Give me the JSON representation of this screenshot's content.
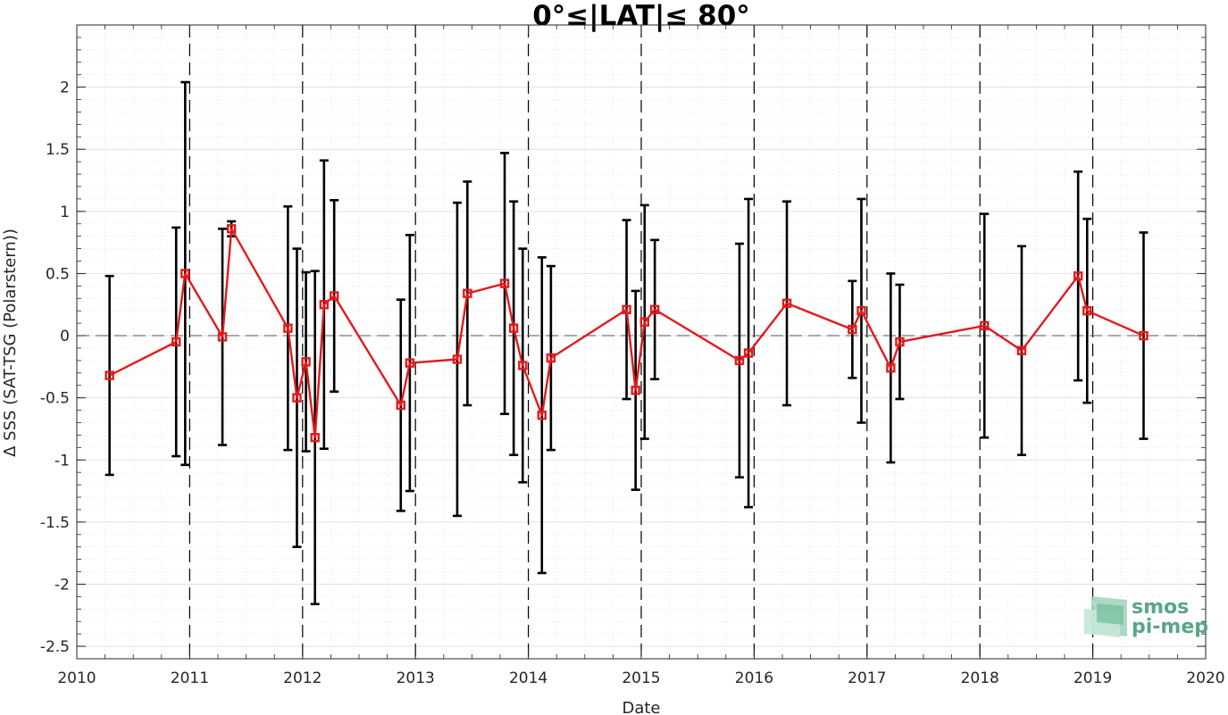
{
  "chart_data": {
    "type": "line",
    "title": "0°≤|LAT|≤ 80°",
    "xlabel": "Date",
    "ylabel": "Δ SSS (SAT-TSG (Polarstern))",
    "xlim": [
      2010,
      2020
    ],
    "ylim": [
      -2.6,
      2.5
    ],
    "x_ticks": [
      2010,
      2011,
      2012,
      2013,
      2014,
      2015,
      2016,
      2017,
      2018,
      2019,
      2020
    ],
    "x_tick_labels": [
      "2010",
      "2011",
      "2012",
      "2013",
      "2014",
      "2015",
      "2016",
      "2017",
      "2018",
      "2019",
      "2020"
    ],
    "y_ticks": [
      -2.5,
      -2,
      -1.5,
      -1,
      -0.5,
      0,
      0.5,
      1,
      1.5,
      2
    ],
    "y_tick_labels": [
      "-2.5",
      "-2",
      "-1.5",
      "-1",
      "-0.5",
      "0",
      "0.5",
      "1",
      "1.5",
      "2"
    ],
    "year_boundaries": [
      2011,
      2012,
      2013,
      2014,
      2015,
      2016,
      2017,
      2018,
      2019
    ],
    "zero_line": true,
    "grid": true,
    "series": [
      {
        "color": "#e31a1c",
        "error_bar_color": "#000000",
        "marker": "square",
        "points": [
          {
            "x": "2010.29",
            "y": -0.32,
            "err": 0.8
          },
          {
            "x": "2010.88",
            "y": -0.05,
            "err": 0.92
          },
          {
            "x": "2010.96",
            "y": 0.5,
            "err": 1.54
          },
          {
            "x": "2011.29",
            "y": -0.01,
            "err": 0.87
          },
          {
            "x": "2011.37",
            "y": 0.86,
            "err": 0.06
          },
          {
            "x": "2011.87",
            "y": 0.06,
            "err": 0.98
          },
          {
            "x": "2011.95",
            "y": -0.5,
            "err": 1.2
          },
          {
            "x": "2012.03",
            "y": -0.21,
            "err": 0.72
          },
          {
            "x": "2012.11",
            "y": -0.82,
            "err": 1.34
          },
          {
            "x": "2012.19",
            "y": 0.25,
            "err": 1.16
          },
          {
            "x": "2012.28",
            "y": 0.32,
            "err": 0.77
          },
          {
            "x": "2012.87",
            "y": -0.56,
            "err": 0.85
          },
          {
            "x": "2012.95",
            "y": -0.22,
            "err": 1.03
          },
          {
            "x": "2013.37",
            "y": -0.19,
            "err": 1.26
          },
          {
            "x": "2013.46",
            "y": 0.34,
            "err": 0.9
          },
          {
            "x": "2013.79",
            "y": 0.42,
            "err": 1.05
          },
          {
            "x": "2013.87",
            "y": 0.06,
            "err": 1.02
          },
          {
            "x": "2013.95",
            "y": -0.24,
            "err": 0.94
          },
          {
            "x": "2014.12",
            "y": -0.64,
            "err": 1.27
          },
          {
            "x": "2014.20",
            "y": -0.18,
            "err": 0.74
          },
          {
            "x": "2014.87",
            "y": 0.21,
            "err": 0.72
          },
          {
            "x": "2014.95",
            "y": -0.44,
            "err": 0.8
          },
          {
            "x": "2015.03",
            "y": 0.11,
            "err": 0.94
          },
          {
            "x": "2015.12",
            "y": 0.21,
            "err": 0.56
          },
          {
            "x": "2015.87",
            "y": -0.2,
            "err": 0.94
          },
          {
            "x": "2015.95",
            "y": -0.14,
            "err": 1.24
          },
          {
            "x": "2016.29",
            "y": 0.26,
            "err": 0.82
          },
          {
            "x": "2016.87",
            "y": 0.05,
            "err": 0.39
          },
          {
            "x": "2016.95",
            "y": 0.2,
            "err": 0.9
          },
          {
            "x": "2017.21",
            "y": -0.26,
            "err": 0.76
          },
          {
            "x": "2017.29",
            "y": -0.05,
            "err": 0.46
          },
          {
            "x": "2018.04",
            "y": 0.08,
            "err": 0.9
          },
          {
            "x": "2018.37",
            "y": -0.12,
            "err": 0.84
          },
          {
            "x": "2018.87",
            "y": 0.48,
            "err": 0.84
          },
          {
            "x": "2018.95",
            "y": 0.2,
            "err": 0.74
          },
          {
            "x": "2019.45",
            "y": 0.0,
            "err": 0.83
          }
        ]
      }
    ]
  },
  "logo": {
    "line1": "smos",
    "line2": "pi-mep",
    "icon": "smos-pi-mep-logo-icon",
    "color": "#5aa585"
  }
}
